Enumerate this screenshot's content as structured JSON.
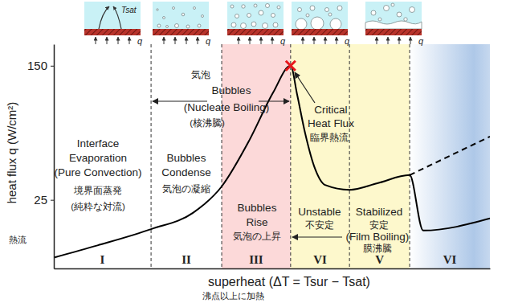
{
  "chart_data": {
    "type": "line",
    "xlabel": "superheat (ΔT = Tsur − Tsat)",
    "xlabel_sub": "沸点以上に加熱",
    "ylabel": "heat flux q (W/cm²)",
    "ylabel_sub": "熱流",
    "log": "y",
    "xlim": [
      0,
      100
    ],
    "ylim": [
      10,
      200
    ],
    "yticks": [
      25,
      150
    ],
    "tick_labels": "y",
    "grid": false,
    "series": [
      {
        "x": [
          0.2,
          10,
          22.3,
          31.9,
          38.5,
          44.8,
          50.3,
          54.3,
          55.8,
          57.6,
          59.9,
          62.2,
          67.8,
          74.2,
          81.6,
          84.7,
          100
        ],
        "values": [
          11.6,
          13.6,
          16.9,
          21,
          29.9,
          55.2,
          105,
          150,
          102,
          61.4,
          37.9,
          30.5,
          28.6,
          31.2,
          34.8,
          16.6,
          19.5
        ],
        "color": "#000000",
        "line_style": "solid"
      },
      {
        "x": [
          81.6,
          100
        ],
        "values": [
          34.8,
          58.2
        ],
        "color": "#000000",
        "line_style": "dashed"
      },
      {
        "type": "scatter",
        "x": [
          54.3
        ],
        "values": [
          150
        ],
        "color": "#e8161b",
        "marker": "x"
      }
    ],
    "regions": [
      {
        "label": "I",
        "x0": 0,
        "x1": 22.3,
        "color": "#ffffff"
      },
      {
        "label": "II",
        "x0": 22.3,
        "x1": 38.5,
        "color": "#ffffff"
      },
      {
        "label": "III",
        "x0": 38.5,
        "x1": 54.3,
        "color": "#fcd9d9"
      },
      {
        "label": "VI",
        "x0": 54.3,
        "x1": 67.8,
        "color": "#fdf8cc"
      },
      {
        "label": "V",
        "x0": 67.8,
        "x1": 81.6,
        "color": "#fdf8cc"
      },
      {
        "label": "VI",
        "x0": 81.6,
        "x1": 100,
        "color": "#aec8e8"
      }
    ],
    "annotations": {
      "evaporation": [
        "Interface",
        "Evaporation",
        "(Pure Convection)",
        "境界面蒸発",
        "(純粋な対流)"
      ],
      "nucleate": [
        "気泡",
        "Bubbles",
        "(Nucleate Boiling)",
        "(核沸騰)"
      ],
      "condense": [
        "Bubbles",
        "Condense",
        "気泡の凝縮"
      ],
      "rise": [
        "Bubbles",
        "Rise",
        "気泡の上昇"
      ],
      "chf": [
        "Critical",
        "Heat Flux",
        "臨界熱流"
      ],
      "unstable": [
        "Unstable",
        "不安定"
      ],
      "stabilized": [
        "Stabilized",
        "安定"
      ],
      "film": [
        "(Film Boiling)",
        "膜沸騰"
      ]
    },
    "icon_labels": {
      "heat": "q",
      "saturation": "Tsat"
    }
  }
}
